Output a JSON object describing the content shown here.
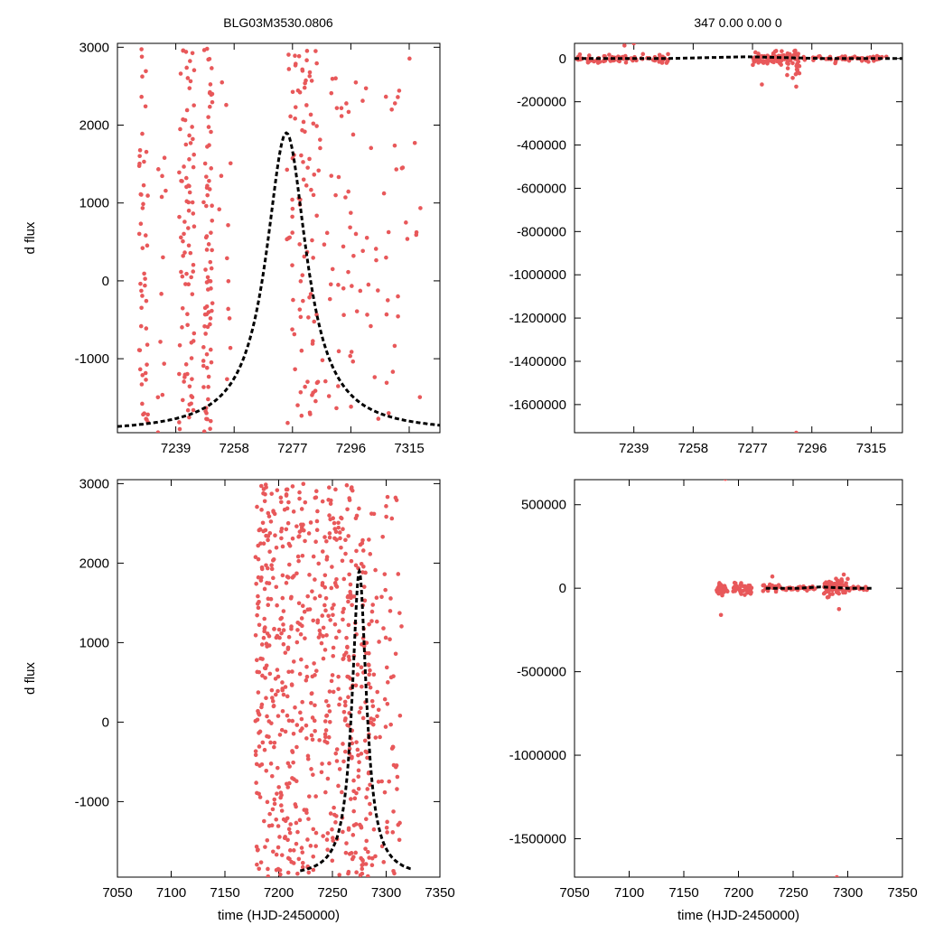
{
  "figure": {
    "left_title": "BLG03M3530.0806",
    "right_title": "347  0.00  0.00  0"
  },
  "colors": {
    "points": "#e8585a",
    "model": "#000000",
    "axes": "#000000",
    "background": "#ffffff"
  },
  "chart_data": [
    {
      "id": "top-left",
      "type": "scatter",
      "title": "BLG03M3530.0806",
      "xlabel": "",
      "ylabel": "d flux",
      "xlim": [
        7220,
        7325
      ],
      "ylim": [
        -1950,
        3050
      ],
      "xticks": [
        7239,
        7258,
        7277,
        7296,
        7315
      ],
      "yticks": [
        -1000,
        0,
        1000,
        2000,
        3000
      ],
      "series": [
        {
          "name": "data",
          "style": "points",
          "gen": {
            "seed": 11,
            "clusters": [
              {
                "x0": 7227,
                "x1": 7230,
                "n": 50
              },
              {
                "x0": 7233,
                "x1": 7236,
                "n": 12
              },
              {
                "x0": 7240,
                "x1": 7245,
                "n": 85
              },
              {
                "x0": 7248,
                "x1": 7251,
                "n": 75
              },
              {
                "x0": 7253,
                "x1": 7257,
                "n": 12
              },
              {
                "x0": 7275,
                "x1": 7285,
                "n": 90
              },
              {
                "x0": 7285,
                "x1": 7298,
                "n": 45
              },
              {
                "x0": 7299,
                "x1": 7320,
                "n": 42
              }
            ],
            "ymin": -1950,
            "ymax": 3000
          }
        },
        {
          "name": "model",
          "style": "dashed-line",
          "model": {
            "t0": 7275,
            "tE": 8,
            "peak": 1900,
            "base": -1950,
            "xmin": 7220,
            "xmax": 7325
          }
        }
      ]
    },
    {
      "id": "top-right",
      "type": "scatter",
      "title": "347  0.00  0.00  0",
      "xlabel": "",
      "ylabel": "",
      "xlim": [
        7220,
        7325
      ],
      "ylim": [
        -1730000,
        70000
      ],
      "xticks": [
        7239,
        7258,
        7277,
        7296,
        7315
      ],
      "yticks": [
        -1600000,
        -1400000,
        -1200000,
        -1000000,
        -800000,
        -600000,
        -400000,
        -200000,
        0
      ],
      "series": [
        {
          "name": "data",
          "style": "points",
          "gen": {
            "seed": 23,
            "clusters": [
              {
                "x0": 7220,
                "x1": 7250,
                "n": 80,
                "spread": 9000
              },
              {
                "x0": 7277,
                "x1": 7288,
                "n": 70,
                "spread": 14000
              },
              {
                "x0": 7288,
                "x1": 7292,
                "n": 40,
                "spread": 45000
              },
              {
                "x0": 7293,
                "x1": 7320,
                "n": 60,
                "spread": 6000
              }
            ],
            "outliers": [
              [
                7236,
                60000
              ],
              [
                7239,
                70000
              ],
              [
                7280,
                -120000
              ],
              [
                7291,
                -1730000
              ],
              [
                7291,
                -130000
              ]
            ]
          }
        },
        {
          "name": "model",
          "style": "dashed-line",
          "points": [
            [
              7220,
              0
            ],
            [
              7250,
              0
            ],
            [
              7275,
              8000
            ],
            [
              7300,
              0
            ],
            [
              7325,
              0
            ]
          ]
        }
      ]
    },
    {
      "id": "bottom-left",
      "type": "scatter",
      "title": "",
      "xlabel": "time (HJD-2450000)",
      "ylabel": "d flux",
      "xlim": [
        7050,
        7350
      ],
      "ylim": [
        -1950,
        3050
      ],
      "xticks": [
        7050,
        7100,
        7150,
        7200,
        7250,
        7300,
        7350
      ],
      "yticks": [
        -1000,
        0,
        1000,
        2000,
        3000
      ],
      "series": [
        {
          "name": "data",
          "style": "points",
          "gen": {
            "seed": 37,
            "clusters": [
              {
                "x0": 7178,
                "x1": 7215,
                "n": 260
              },
              {
                "x0": 7215,
                "x1": 7260,
                "n": 230
              },
              {
                "x0": 7260,
                "x1": 7285,
                "n": 160
              },
              {
                "x0": 7285,
                "x1": 7315,
                "n": 80
              }
            ],
            "ymin": -1950,
            "ymax": 3000
          }
        },
        {
          "name": "model",
          "style": "dashed-line",
          "model": {
            "t0": 7275,
            "tE": 8,
            "peak": 1900,
            "base": -1950,
            "xmin": 7220,
            "xmax": 7325
          }
        }
      ]
    },
    {
      "id": "bottom-right",
      "type": "scatter",
      "title": "",
      "xlabel": "time (HJD-2450000)",
      "ylabel": "",
      "xlim": [
        7050,
        7350
      ],
      "ylim": [
        -1730000,
        650000
      ],
      "xticks": [
        7050,
        7100,
        7150,
        7200,
        7250,
        7300,
        7350
      ],
      "yticks": [
        -1500000,
        -1000000,
        -500000,
        0,
        500000
      ],
      "series": [
        {
          "name": "data",
          "style": "points",
          "gen": {
            "seed": 53,
            "clusters": [
              {
                "x0": 7180,
                "x1": 7190,
                "n": 30,
                "spread": 18000
              },
              {
                "x0": 7195,
                "x1": 7212,
                "n": 45,
                "spread": 15000
              },
              {
                "x0": 7222,
                "x1": 7238,
                "n": 25,
                "spread": 12000
              },
              {
                "x0": 7240,
                "x1": 7270,
                "n": 40,
                "spread": 5000
              },
              {
                "x0": 7278,
                "x1": 7300,
                "n": 70,
                "spread": 30000
              },
              {
                "x0": 7300,
                "x1": 7318,
                "n": 25,
                "spread": 6000
              }
            ],
            "outliers": [
              [
                7188,
                655000
              ],
              [
                7184,
                -160000
              ],
              [
                7231,
                70000
              ],
              [
                7292,
                -125000
              ],
              [
                7290,
                -1730000
              ]
            ]
          }
        },
        {
          "name": "model",
          "style": "dashed-line",
          "points": [
            [
              7225,
              0
            ],
            [
              7255,
              0
            ],
            [
              7275,
              8000
            ],
            [
              7300,
              0
            ],
            [
              7322,
              0
            ]
          ]
        }
      ]
    }
  ]
}
